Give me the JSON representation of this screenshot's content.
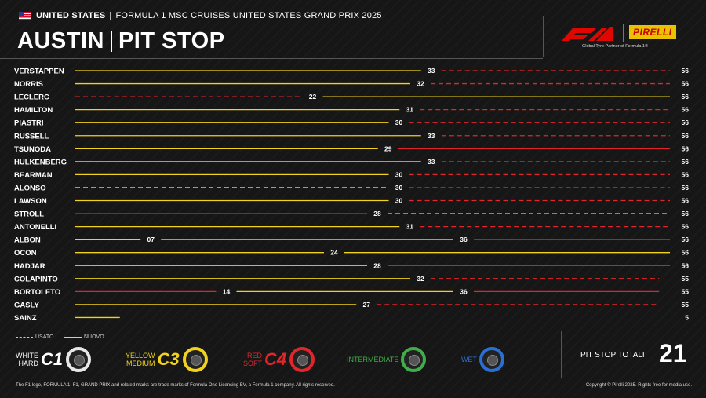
{
  "header": {
    "country": "UNITED STATES",
    "event": "FORMULA 1 MSC CRUISES UNITED STATES GRAND PRIX 2025",
    "title_city": "AUSTIN",
    "title_topic": "PIT STOP"
  },
  "logos": {
    "f1": "F1",
    "pirelli": "PIRELLI",
    "partner": "Global Tyre Partner of Formula 1®"
  },
  "colors": {
    "hard": "#ffffff",
    "medium": "#f2d21b",
    "soft": "#e0262b",
    "intermediate": "#3fae49",
    "wet": "#2a6fd6",
    "background": "#161616"
  },
  "chart_data": {
    "type": "table",
    "total_laps": 56,
    "drivers": [
      {
        "name": "VERSTAPPEN",
        "finish": "56",
        "stints": [
          {
            "tyre": "medium",
            "used": false,
            "end": 33,
            "label": "33"
          },
          {
            "tyre": "soft",
            "used": true,
            "end": 56
          }
        ]
      },
      {
        "name": "NORRIS",
        "finish": "56",
        "stints": [
          {
            "tyre": "medium",
            "used": false,
            "end": 32,
            "label": "32"
          },
          {
            "tyre": "soft",
            "used": true,
            "end": 56
          }
        ]
      },
      {
        "name": "LECLERC",
        "finish": "56",
        "stints": [
          {
            "tyre": "soft",
            "used": true,
            "end": 22,
            "label": "22"
          },
          {
            "tyre": "medium",
            "used": false,
            "end": 56
          }
        ]
      },
      {
        "name": "HAMILTON",
        "finish": "56",
        "stints": [
          {
            "tyre": "medium",
            "used": false,
            "end": 31,
            "label": "31"
          },
          {
            "tyre": "soft",
            "used": true,
            "end": 56
          }
        ]
      },
      {
        "name": "PIASTRI",
        "finish": "56",
        "stints": [
          {
            "tyre": "medium",
            "used": false,
            "end": 30,
            "label": "30"
          },
          {
            "tyre": "soft",
            "used": true,
            "end": 56
          }
        ]
      },
      {
        "name": "RUSSELL",
        "finish": "56",
        "stints": [
          {
            "tyre": "medium",
            "used": false,
            "end": 33,
            "label": "33"
          },
          {
            "tyre": "soft",
            "used": true,
            "end": 56
          }
        ]
      },
      {
        "name": "TSUNODA",
        "finish": "56",
        "stints": [
          {
            "tyre": "medium",
            "used": false,
            "end": 29,
            "label": "29"
          },
          {
            "tyre": "soft",
            "used": false,
            "end": 56
          }
        ]
      },
      {
        "name": "HULKENBERG",
        "finish": "56",
        "stints": [
          {
            "tyre": "medium",
            "used": false,
            "end": 33,
            "label": "33"
          },
          {
            "tyre": "soft",
            "used": true,
            "end": 56
          }
        ]
      },
      {
        "name": "BEARMAN",
        "finish": "56",
        "stints": [
          {
            "tyre": "medium",
            "used": false,
            "end": 30,
            "label": "30"
          },
          {
            "tyre": "soft",
            "used": true,
            "end": 56
          }
        ]
      },
      {
        "name": "ALONSO",
        "finish": "56",
        "stints": [
          {
            "tyre": "medium",
            "used": true,
            "end": 30,
            "label": "30"
          },
          {
            "tyre": "soft",
            "used": true,
            "end": 56
          }
        ]
      },
      {
        "name": "LAWSON",
        "finish": "56",
        "stints": [
          {
            "tyre": "medium",
            "used": false,
            "end": 30,
            "label": "30"
          },
          {
            "tyre": "soft",
            "used": true,
            "end": 56
          }
        ]
      },
      {
        "name": "STROLL",
        "finish": "56",
        "stints": [
          {
            "tyre": "soft",
            "used": false,
            "end": 28,
            "label": "28"
          },
          {
            "tyre": "medium",
            "used": true,
            "end": 56
          }
        ]
      },
      {
        "name": "ANTONELLI",
        "finish": "56",
        "stints": [
          {
            "tyre": "medium",
            "used": false,
            "end": 31,
            "label": "31"
          },
          {
            "tyre": "soft",
            "used": true,
            "end": 56
          }
        ]
      },
      {
        "name": "ALBON",
        "finish": "56",
        "stints": [
          {
            "tyre": "hard",
            "used": false,
            "end": 7,
            "label": "07"
          },
          {
            "tyre": "medium",
            "used": false,
            "end": 36,
            "label": "36"
          },
          {
            "tyre": "soft",
            "used": false,
            "end": 56
          }
        ]
      },
      {
        "name": "OCON",
        "finish": "56",
        "stints": [
          {
            "tyre": "medium",
            "used": false,
            "end": 24,
            "label": "24"
          },
          {
            "tyre": "medium",
            "used": false,
            "end": 56
          }
        ]
      },
      {
        "name": "HADJAR",
        "finish": "56",
        "stints": [
          {
            "tyre": "medium",
            "used": false,
            "end": 28,
            "label": "28"
          },
          {
            "tyre": "soft",
            "used": false,
            "end": 56
          }
        ]
      },
      {
        "name": "COLAPINTO",
        "finish": "55",
        "stints": [
          {
            "tyre": "medium",
            "used": false,
            "end": 32,
            "label": "32"
          },
          {
            "tyre": "soft",
            "used": true,
            "end": 55
          }
        ]
      },
      {
        "name": "BORTOLETO",
        "finish": "55",
        "stints": [
          {
            "tyre": "soft",
            "used": false,
            "end": 14,
            "label": "14"
          },
          {
            "tyre": "medium",
            "used": false,
            "end": 36,
            "label": "36"
          },
          {
            "tyre": "soft",
            "used": false,
            "end": 55
          }
        ]
      },
      {
        "name": "GASLY",
        "finish": "55",
        "stints": [
          {
            "tyre": "medium",
            "used": false,
            "end": 27,
            "label": "27"
          },
          {
            "tyre": "soft",
            "used": true,
            "end": 55
          }
        ]
      },
      {
        "name": "SAINZ",
        "finish": "5",
        "stints": [
          {
            "tyre": "medium",
            "used": false,
            "end": 5
          }
        ]
      }
    ]
  },
  "legend": {
    "used": "USATO",
    "new": "NUOVO",
    "tyres": [
      {
        "key": "hard",
        "line1": "WHITE",
        "line2": "HARD",
        "code": "C1"
      },
      {
        "key": "medium",
        "line1": "YELLOW",
        "line2": "MEDIUM",
        "code": "C3"
      },
      {
        "key": "soft",
        "line1": "RED",
        "line2": "SOFT",
        "code": "C4"
      },
      {
        "key": "intermediate",
        "line1": "INTERMEDIATE",
        "line2": "",
        "code": ""
      },
      {
        "key": "wet",
        "line1": "WET",
        "line2": "",
        "code": ""
      }
    ]
  },
  "totals": {
    "label": "PIT STOP TOTALI",
    "value": "21"
  },
  "footer": {
    "left": "The F1 logo, FORMULA 1, F1, GRAND PRIX and related marks are trade marks of Formula One Licensing BV, a Formula 1 company. All rights reserved.",
    "right": "Copyright © Pirelli 2025. Rights free for media use."
  }
}
